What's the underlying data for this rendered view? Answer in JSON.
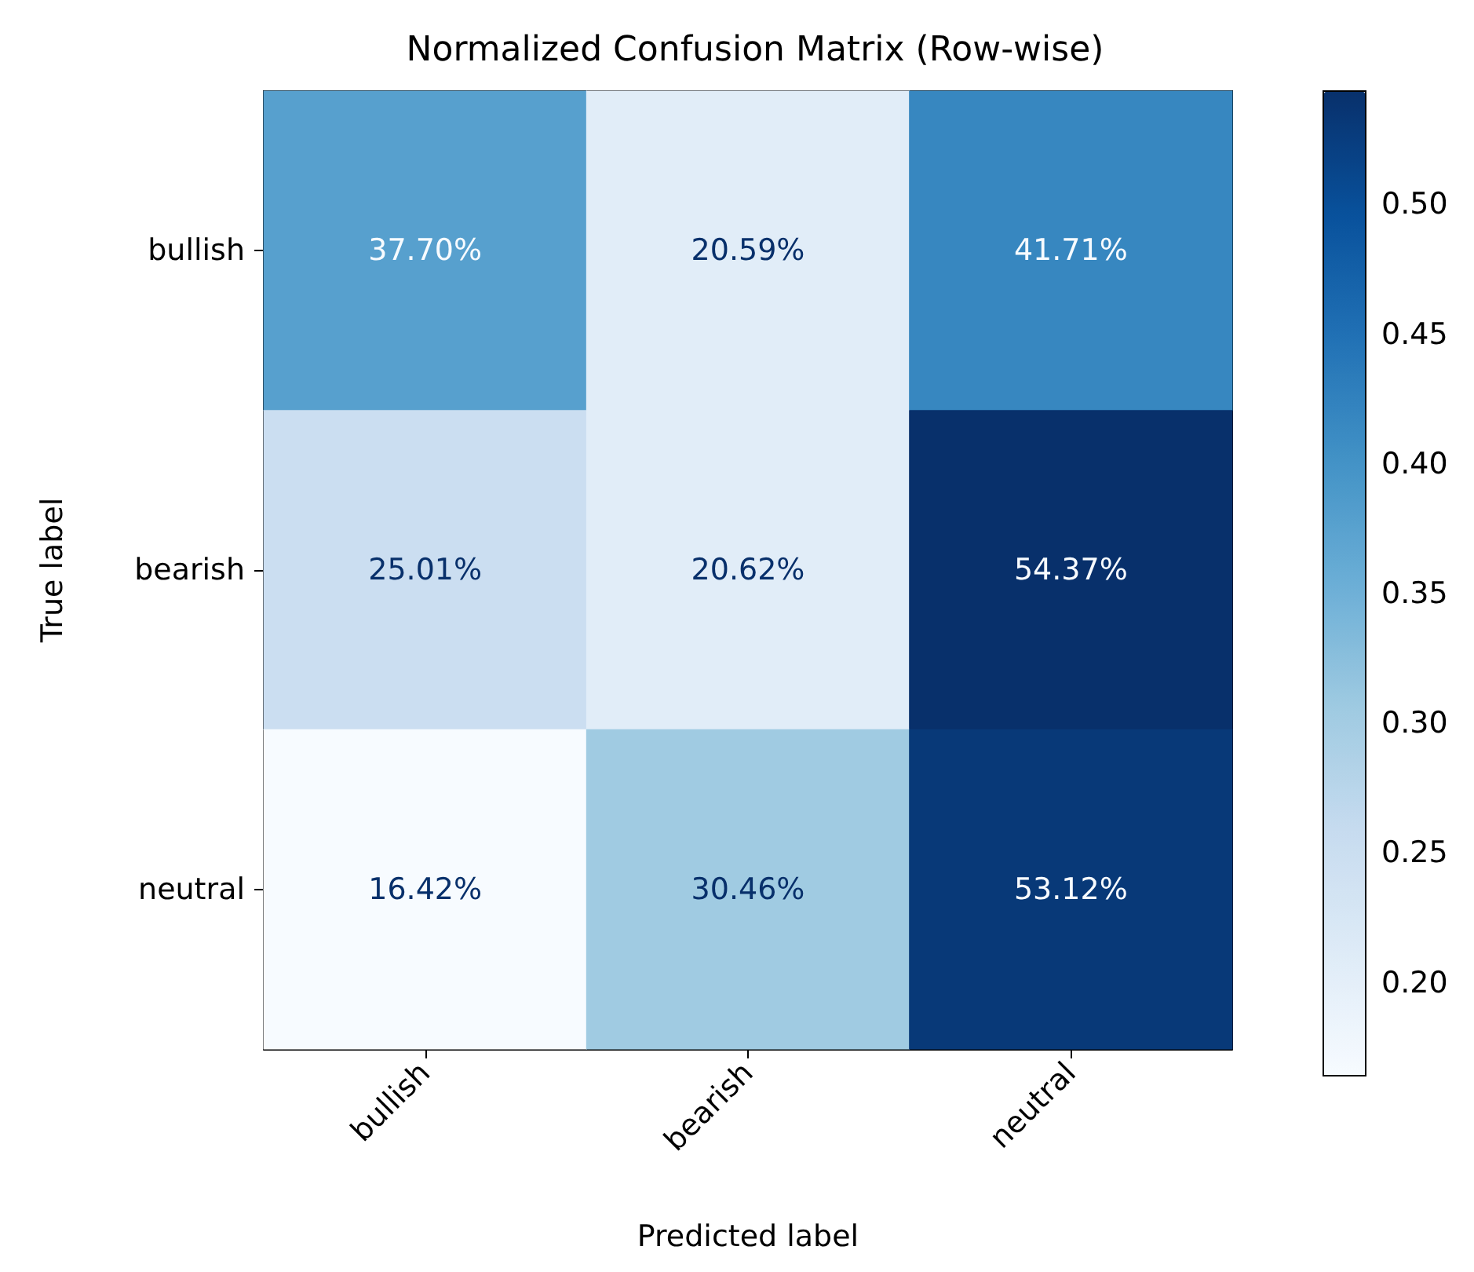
{
  "chart_data": {
    "type": "heatmap",
    "title": "Normalized Confusion Matrix (Row-wise)",
    "xlabel": "Predicted label",
    "ylabel": "True label",
    "categories": [
      "bullish",
      "bearish",
      "neutral"
    ],
    "y_categories": [
      "bullish",
      "bearish",
      "neutral"
    ],
    "cells": [
      [
        0.377,
        0.2059,
        0.4171
      ],
      [
        0.2501,
        0.2062,
        0.5437
      ],
      [
        0.1642,
        0.3046,
        0.5312
      ]
    ],
    "cell_labels": [
      [
        "37.70%",
        "20.59%",
        "41.71%"
      ],
      [
        "25.01%",
        "20.62%",
        "54.37%"
      ],
      [
        "16.42%",
        "30.46%",
        "53.12%"
      ]
    ],
    "clim": [
      0.1642,
      0.5437
    ],
    "cticks": [
      {
        "value": 0.2,
        "label": "0.20"
      },
      {
        "value": 0.25,
        "label": "0.25"
      },
      {
        "value": 0.3,
        "label": "0.30"
      },
      {
        "value": 0.35,
        "label": "0.35"
      },
      {
        "value": 0.4,
        "label": "0.40"
      },
      {
        "value": 0.45,
        "label": "0.45"
      },
      {
        "value": 0.5,
        "label": "0.50"
      }
    ]
  }
}
